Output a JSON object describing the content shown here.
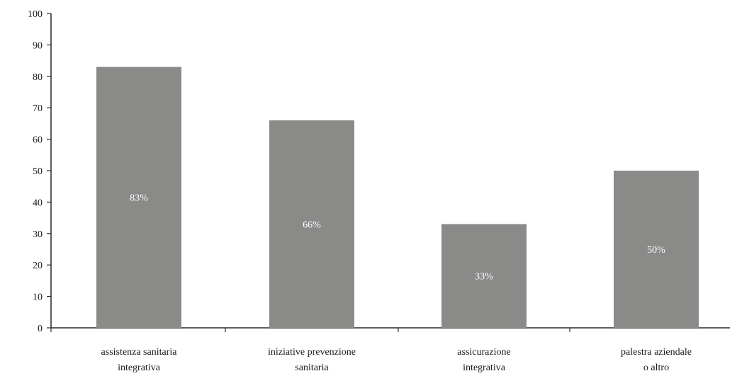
{
  "chart_data": {
    "type": "bar",
    "title": "",
    "xlabel": "",
    "ylabel": "",
    "ylim": [
      0,
      100
    ],
    "yticks": [
      0,
      10,
      20,
      30,
      40,
      50,
      60,
      70,
      80,
      90,
      100
    ],
    "categories": [
      [
        "assistenza sanitaria",
        "integrativa"
      ],
      [
        "iniziative prevenzione",
        "sanitaria"
      ],
      [
        "assicurazione",
        "integrativa"
      ],
      [
        "palestra aziendale",
        "o altro"
      ]
    ],
    "values": [
      83,
      66,
      33,
      50
    ],
    "data_labels": [
      "83%",
      "66%",
      "33%",
      "50%"
    ],
    "bar_color": "#8a8a89",
    "grid": false,
    "legend": "none"
  }
}
